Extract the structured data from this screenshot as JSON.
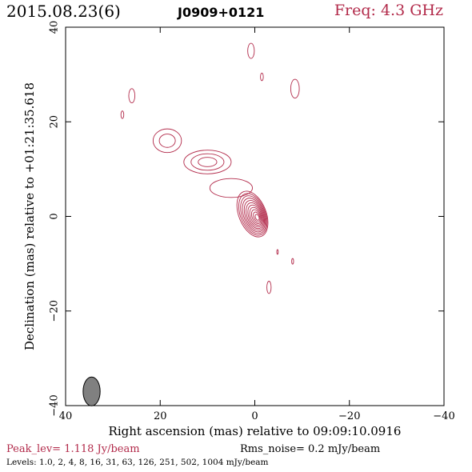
{
  "header": {
    "date": "2015.08.23(6)",
    "source": "J0909+0121",
    "freq": "Freq: 4.3 GHz"
  },
  "colors": {
    "contour": "#b22a4a",
    "beam": "#808080",
    "accent": "#b22a4a"
  },
  "chart_data": {
    "type": "contour",
    "xlabel": "Right ascension (mas) relative to 09:09:10.0916",
    "ylabel": "Declination (mas) relative to +01:21:35.618",
    "xlim": [
      40,
      -40
    ],
    "ylim": [
      -40,
      40
    ],
    "xticks": [
      40,
      20,
      0,
      -20,
      -40
    ],
    "yticks": [
      -40,
      -20,
      0,
      20,
      40
    ],
    "xtick_labels": [
      "40",
      "20",
      "0",
      "−20",
      "−40"
    ],
    "ytick_labels": [
      "−40",
      "−20",
      "0",
      "20",
      "40"
    ],
    "beam": {
      "x": 34.5,
      "y": -37,
      "major": 4.2,
      "minor": 1.8,
      "pa": 0
    },
    "core": {
      "x": 0.5,
      "y": 0.5,
      "levels": 11
    },
    "components": [
      {
        "x": 18.5,
        "y": 16.0,
        "w": 6.0,
        "h": 5.0,
        "levels": 2
      },
      {
        "x": 10.0,
        "y": 11.5,
        "w": 10.0,
        "h": 5.0,
        "levels": 3
      },
      {
        "x": 5.0,
        "y": 6.0,
        "w": 9.0,
        "h": 4.0,
        "levels": 1
      },
      {
        "x": 26.0,
        "y": 25.5,
        "w": 1.3,
        "h": 3.0,
        "levels": 1
      },
      {
        "x": 28.0,
        "y": 21.5,
        "w": 0.6,
        "h": 1.6,
        "levels": 1
      },
      {
        "x": 0.8,
        "y": 35.0,
        "w": 1.4,
        "h": 3.2,
        "levels": 1
      },
      {
        "x": -1.5,
        "y": 29.5,
        "w": 0.6,
        "h": 1.6,
        "levels": 1
      },
      {
        "x": -8.5,
        "y": 27.0,
        "w": 1.8,
        "h": 4.0,
        "levels": 1
      },
      {
        "x": -3.0,
        "y": -15.0,
        "w": 0.9,
        "h": 2.6,
        "levels": 1
      },
      {
        "x": -4.8,
        "y": -7.5,
        "w": 0.3,
        "h": 1.0,
        "levels": 1
      },
      {
        "x": -8.0,
        "y": -9.5,
        "w": 0.4,
        "h": 1.2,
        "levels": 1
      }
    ],
    "peak": "Peak_lev=  1.118 Jy/beam",
    "rms": "Rms_noise=  0.2 mJy/beam",
    "levels_text": "Levels: 1.0,   2,   4,   8,  16,  31,  63, 126, 251, 502, 1004 mJy/beam"
  }
}
